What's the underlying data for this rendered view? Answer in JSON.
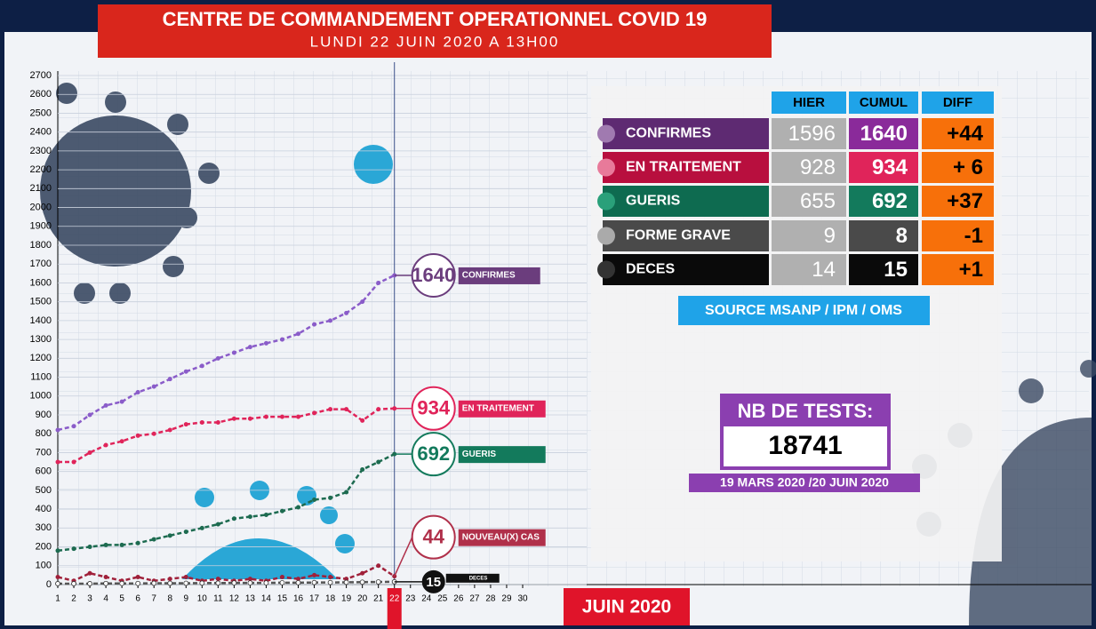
{
  "header": {
    "title": "CENTRE DE COMMANDEMENT OPERATIONNEL COVID 19",
    "subtitle": "LUNDI 22 JUIN 2020 A 13H00"
  },
  "chart_data": {
    "type": "line",
    "month_label": "JUIN 2020",
    "x": [
      1,
      2,
      3,
      4,
      5,
      6,
      7,
      8,
      9,
      10,
      11,
      12,
      13,
      14,
      15,
      16,
      17,
      18,
      19,
      20,
      21,
      22
    ],
    "xlim": [
      1,
      30
    ],
    "xticks": [
      1,
      2,
      3,
      4,
      5,
      6,
      7,
      8,
      9,
      10,
      11,
      12,
      13,
      14,
      15,
      16,
      17,
      18,
      19,
      20,
      21,
      22,
      23,
      24,
      25,
      26,
      27,
      28,
      29,
      30
    ],
    "ylim": [
      0,
      2700
    ],
    "yticks": [
      0,
      100,
      200,
      300,
      400,
      500,
      600,
      700,
      800,
      900,
      1000,
      1100,
      1200,
      1300,
      1400,
      1500,
      1600,
      1700,
      1800,
      1900,
      2000,
      2100,
      2200,
      2300,
      2400,
      2500,
      2600,
      2700
    ],
    "grid": true,
    "series": [
      {
        "name": "CONFIRMES",
        "color": "#8a5cc9",
        "label_color": "#6b3d7d",
        "values": [
          820,
          840,
          900,
          950,
          970,
          1020,
          1050,
          1090,
          1130,
          1160,
          1200,
          1230,
          1260,
          1280,
          1300,
          1330,
          1380,
          1400,
          1440,
          1500,
          1600,
          1640
        ]
      },
      {
        "name": "EN TRAITEMENT",
        "color": "#e0245a",
        "label_color": "#e0245a",
        "values": [
          650,
          650,
          700,
          740,
          760,
          790,
          800,
          820,
          850,
          860,
          860,
          880,
          880,
          890,
          890,
          890,
          910,
          930,
          930,
          870,
          930,
          934
        ]
      },
      {
        "name": "GUERIS",
        "color": "#1d6b50",
        "label_color": "#137a5c",
        "values": [
          180,
          190,
          200,
          210,
          210,
          220,
          240,
          260,
          280,
          300,
          320,
          350,
          360,
          370,
          390,
          410,
          450,
          460,
          490,
          610,
          650,
          692
        ]
      },
      {
        "name": "NOUVEAU(X) CAS",
        "color": "#a0203a",
        "label_color": "#b0304a",
        "values": [
          40,
          20,
          60,
          40,
          20,
          40,
          20,
          30,
          40,
          20,
          30,
          20,
          30,
          20,
          40,
          30,
          50,
          40,
          30,
          60,
          100,
          44
        ]
      },
      {
        "name": "DECES",
        "color": "#555555",
        "label_color": "#111111",
        "values": [
          5,
          5,
          5,
          6,
          6,
          6,
          7,
          7,
          7,
          8,
          8,
          9,
          9,
          9,
          10,
          10,
          11,
          11,
          12,
          13,
          14,
          15
        ]
      }
    ]
  },
  "table": {
    "columns": [
      "HIER",
      "CUMUL",
      "DIFF"
    ],
    "rows": [
      [
        "CONFIRMES",
        1596,
        1640,
        "+44"
      ],
      [
        "EN TRAITEMENT",
        928,
        934,
        "+ 6"
      ],
      [
        "GUERIS",
        655,
        692,
        "+37"
      ],
      [
        "FORME GRAVE",
        9,
        8,
        "-1"
      ],
      [
        "DECES",
        14,
        15,
        "+1"
      ]
    ],
    "source": "SOURCE MSANP / IPM / OMS"
  },
  "tests": {
    "label": "NB DE TESTS:",
    "value": 18741,
    "period": "19 MARS 2020 /20 JUIN 2020"
  }
}
